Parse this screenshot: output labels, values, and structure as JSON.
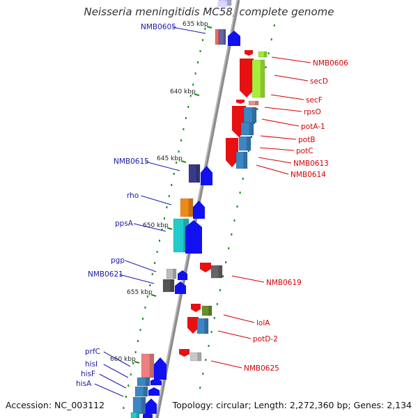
{
  "title": "Neisseria meningitidis MC58, complete genome",
  "footer": {
    "accession": "Accession: NC_003112",
    "topology": "Topology: circular; Length: 2,272,360 bp; Genes: 2,134"
  },
  "kbp_labels": [
    "635 kbp",
    "640 kbp",
    "645 kbp",
    "650 kbp",
    "655 kbp",
    "660 kbp"
  ],
  "genes_left": [
    {
      "name": "NMB0605",
      "color": "#1a1aa8"
    },
    {
      "name": "NMB0615",
      "color": "#1a1aa8"
    },
    {
      "name": "rho",
      "color": "#1a1aa8"
    },
    {
      "name": "ppsA",
      "color": "#1a1aa8"
    },
    {
      "name": "pgp",
      "color": "#1a1aa8"
    },
    {
      "name": "NMB0621",
      "color": "#1a1aa8"
    },
    {
      "name": "prfC",
      "color": "#1a1aa8"
    },
    {
      "name": "hisI",
      "color": "#1a1aa8"
    },
    {
      "name": "hisF",
      "color": "#1a1aa8"
    },
    {
      "name": "hisA",
      "color": "#1a1aa8"
    }
  ],
  "genes_right": [
    {
      "name": "NMB0606",
      "color": "#d40000"
    },
    {
      "name": "secD",
      "color": "#d40000"
    },
    {
      "name": "secF",
      "color": "#d40000"
    },
    {
      "name": "rpsO",
      "color": "#d40000"
    },
    {
      "name": "potA-1",
      "color": "#d40000"
    },
    {
      "name": "potB",
      "color": "#d40000"
    },
    {
      "name": "potC",
      "color": "#d40000"
    },
    {
      "name": "NMB0613",
      "color": "#d40000"
    },
    {
      "name": "NMB0614",
      "color": "#d40000"
    },
    {
      "name": "NMB0619",
      "color": "#d40000"
    },
    {
      "name": "lolA",
      "color": "#d40000"
    },
    {
      "name": "potD-2",
      "color": "#d40000"
    },
    {
      "name": "NMB0625",
      "color": "#d40000"
    }
  ],
  "colors": {
    "backbone": "#8c8c8c",
    "tick": "#1a8f1a",
    "forward_arrow": "#1010f0",
    "reverse_arrow": "#e81010",
    "left_label": "#1a1aa8",
    "right_label": "#d40000"
  }
}
